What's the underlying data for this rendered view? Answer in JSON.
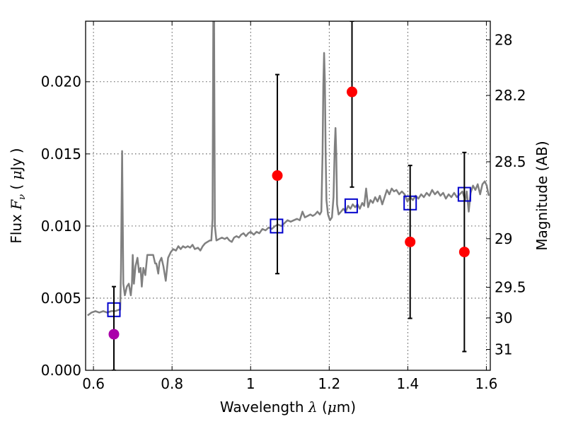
{
  "chart_data": {
    "type": "scatter",
    "title": "",
    "xlabel": {
      "prefix": "Wavelength  ",
      "symbol": "λ",
      "suffix": " (",
      "unit_symbol": "μ",
      "unit_tail": "m)"
    },
    "ylabel": {
      "prefix": "Flux  ",
      "symbol": "F",
      "subscript": "ν",
      "mid": "  ( ",
      "unit_symbol": "μ",
      "unit_tail": "Jy )"
    },
    "y2label": "Magnitude (AB)",
    "xlim": [
      0.58,
      1.61
    ],
    "ylim": [
      0.0,
      0.0242
    ],
    "grid": true,
    "x_ticks": [
      0.6,
      0.8,
      1.0,
      1.2,
      1.4,
      1.6
    ],
    "x_tick_labels": [
      "0.6",
      "0.8",
      "1",
      "1.2",
      "1.4",
      "1.6"
    ],
    "y_ticks": [
      0.0,
      0.005,
      0.01,
      0.015,
      0.02
    ],
    "y_tick_labels": [
      "0.000",
      "0.005",
      "0.010",
      "0.015",
      "0.020"
    ],
    "y2_ticks": [
      {
        "label": "28",
        "mag": 28.0
      },
      {
        "label": "28.2",
        "mag": 28.2
      },
      {
        "label": "28.5",
        "mag": 28.5
      },
      {
        "label": "29",
        "mag": 29.0
      },
      {
        "label": "29.5",
        "mag": 29.5
      },
      {
        "label": "30",
        "mag": 30.0
      },
      {
        "label": "31",
        "mag": 31.0
      }
    ],
    "series": [
      {
        "kind": "spectrum-line",
        "color": "#808080",
        "points": [
          [
            0.585,
            0.0038
          ],
          [
            0.595,
            0.004
          ],
          [
            0.605,
            0.0041
          ],
          [
            0.615,
            0.004
          ],
          [
            0.625,
            0.0041
          ],
          [
            0.635,
            0.004
          ],
          [
            0.645,
            0.0041
          ],
          [
            0.655,
            0.0041
          ],
          [
            0.665,
            0.0042
          ],
          [
            0.668,
            0.0042
          ],
          [
            0.67,
            0.007
          ],
          [
            0.673,
            0.0152
          ],
          [
            0.676,
            0.006
          ],
          [
            0.68,
            0.0052
          ],
          [
            0.685,
            0.0058
          ],
          [
            0.69,
            0.006
          ],
          [
            0.695,
            0.0052
          ],
          [
            0.698,
            0.006
          ],
          [
            0.7,
            0.008
          ],
          [
            0.703,
            0.006
          ],
          [
            0.707,
            0.0072
          ],
          [
            0.712,
            0.0078
          ],
          [
            0.716,
            0.0068
          ],
          [
            0.72,
            0.0071
          ],
          [
            0.723,
            0.0058
          ],
          [
            0.727,
            0.0071
          ],
          [
            0.732,
            0.0066
          ],
          [
            0.737,
            0.008
          ],
          [
            0.745,
            0.008
          ],
          [
            0.752,
            0.008
          ],
          [
            0.757,
            0.0074
          ],
          [
            0.76,
            0.0074
          ],
          [
            0.765,
            0.0067
          ],
          [
            0.768,
            0.0075
          ],
          [
            0.773,
            0.0078
          ],
          [
            0.778,
            0.0072
          ],
          [
            0.784,
            0.0062
          ],
          [
            0.79,
            0.0078
          ],
          [
            0.797,
            0.0082
          ],
          [
            0.803,
            0.0084
          ],
          [
            0.81,
            0.0083
          ],
          [
            0.816,
            0.0086
          ],
          [
            0.822,
            0.0084
          ],
          [
            0.828,
            0.0086
          ],
          [
            0.834,
            0.0085
          ],
          [
            0.84,
            0.0086
          ],
          [
            0.846,
            0.0085
          ],
          [
            0.852,
            0.0087
          ],
          [
            0.858,
            0.0084
          ],
          [
            0.866,
            0.0085
          ],
          [
            0.872,
            0.0083
          ],
          [
            0.878,
            0.0086
          ],
          [
            0.884,
            0.0088
          ],
          [
            0.89,
            0.0089
          ],
          [
            0.896,
            0.009
          ],
          [
            0.9,
            0.009
          ],
          [
            0.903,
            0.0105
          ],
          [
            0.905,
            0.0242
          ],
          [
            0.907,
            0.0242
          ],
          [
            0.909,
            0.01
          ],
          [
            0.913,
            0.009
          ],
          [
            0.92,
            0.0091
          ],
          [
            0.927,
            0.0092
          ],
          [
            0.934,
            0.0091
          ],
          [
            0.94,
            0.0092
          ],
          [
            0.946,
            0.009
          ],
          [
            0.952,
            0.0089
          ],
          [
            0.958,
            0.0092
          ],
          [
            0.964,
            0.0093
          ],
          [
            0.97,
            0.0092
          ],
          [
            0.976,
            0.0094
          ],
          [
            0.982,
            0.0095
          ],
          [
            0.988,
            0.0093
          ],
          [
            0.994,
            0.0095
          ],
          [
            1.0,
            0.0096
          ],
          [
            1.008,
            0.0094
          ],
          [
            1.015,
            0.0096
          ],
          [
            1.022,
            0.0095
          ],
          [
            1.03,
            0.0098
          ],
          [
            1.038,
            0.0097
          ],
          [
            1.046,
            0.0099
          ],
          [
            1.054,
            0.0098
          ],
          [
            1.062,
            0.01
          ],
          [
            1.07,
            0.0101
          ],
          [
            1.078,
            0.01
          ],
          [
            1.086,
            0.0102
          ],
          [
            1.094,
            0.0104
          ],
          [
            1.102,
            0.0103
          ],
          [
            1.11,
            0.0104
          ],
          [
            1.118,
            0.0105
          ],
          [
            1.125,
            0.0104
          ],
          [
            1.132,
            0.011
          ],
          [
            1.138,
            0.0106
          ],
          [
            1.145,
            0.0107
          ],
          [
            1.152,
            0.0108
          ],
          [
            1.158,
            0.0107
          ],
          [
            1.164,
            0.0108
          ],
          [
            1.17,
            0.011
          ],
          [
            1.176,
            0.0108
          ],
          [
            1.18,
            0.011
          ],
          [
            1.183,
            0.015
          ],
          [
            1.185,
            0.0198
          ],
          [
            1.187,
            0.022
          ],
          [
            1.189,
            0.02
          ],
          [
            1.191,
            0.015
          ],
          [
            1.193,
            0.0118
          ],
          [
            1.197,
            0.0108
          ],
          [
            1.202,
            0.0104
          ],
          [
            1.207,
            0.0106
          ],
          [
            1.211,
            0.012
          ],
          [
            1.214,
            0.0155
          ],
          [
            1.216,
            0.0168
          ],
          [
            1.218,
            0.015
          ],
          [
            1.22,
            0.0115
          ],
          [
            1.224,
            0.0108
          ],
          [
            1.23,
            0.011
          ],
          [
            1.236,
            0.0112
          ],
          [
            1.242,
            0.011
          ],
          [
            1.248,
            0.0114
          ],
          [
            1.254,
            0.0112
          ],
          [
            1.26,
            0.0115
          ],
          [
            1.266,
            0.0113
          ],
          [
            1.272,
            0.0115
          ],
          [
            1.278,
            0.0112
          ],
          [
            1.284,
            0.0116
          ],
          [
            1.289,
            0.0114
          ],
          [
            1.294,
            0.0126
          ],
          [
            1.299,
            0.0113
          ],
          [
            1.305,
            0.0118
          ],
          [
            1.311,
            0.0116
          ],
          [
            1.317,
            0.012
          ],
          [
            1.323,
            0.0117
          ],
          [
            1.329,
            0.0121
          ],
          [
            1.335,
            0.0115
          ],
          [
            1.341,
            0.012
          ],
          [
            1.347,
            0.0125
          ],
          [
            1.353,
            0.0122
          ],
          [
            1.359,
            0.0126
          ],
          [
            1.365,
            0.0124
          ],
          [
            1.371,
            0.0125
          ],
          [
            1.378,
            0.0122
          ],
          [
            1.385,
            0.0124
          ],
          [
            1.392,
            0.0122
          ],
          [
            1.399,
            0.0117
          ],
          [
            1.406,
            0.012
          ],
          [
            1.413,
            0.0118
          ],
          [
            1.42,
            0.0121
          ],
          [
            1.427,
            0.0119
          ],
          [
            1.434,
            0.0122
          ],
          [
            1.441,
            0.012
          ],
          [
            1.448,
            0.0123
          ],
          [
            1.455,
            0.0121
          ],
          [
            1.462,
            0.0125
          ],
          [
            1.469,
            0.0122
          ],
          [
            1.476,
            0.0124
          ],
          [
            1.483,
            0.0121
          ],
          [
            1.49,
            0.0123
          ],
          [
            1.497,
            0.0119
          ],
          [
            1.504,
            0.0122
          ],
          [
            1.511,
            0.012
          ],
          [
            1.518,
            0.0123
          ],
          [
            1.525,
            0.012
          ],
          [
            1.532,
            0.0122
          ],
          [
            1.539,
            0.0124
          ],
          [
            1.546,
            0.0118
          ],
          [
            1.55,
            0.0124
          ],
          [
            1.555,
            0.011
          ],
          [
            1.56,
            0.0123
          ],
          [
            1.566,
            0.0128
          ],
          [
            1.572,
            0.0125
          ],
          [
            1.578,
            0.0129
          ],
          [
            1.584,
            0.0122
          ],
          [
            1.59,
            0.0129
          ],
          [
            1.596,
            0.0131
          ],
          [
            1.601,
            0.0128
          ],
          [
            1.606,
            0.0121
          ]
        ]
      },
      {
        "kind": "open-squares",
        "color": "#0000cc",
        "points": [
          [
            0.652,
            0.0042
          ],
          [
            1.066,
            0.01
          ],
          [
            1.256,
            0.0114
          ],
          [
            1.406,
            0.0116
          ],
          [
            1.544,
            0.0122
          ]
        ]
      },
      {
        "kind": "errorbars",
        "color": "#000000",
        "bars": [
          {
            "x": 0.652,
            "low": 0.0,
            "high": 0.0058
          },
          {
            "x": 1.068,
            "low": 0.0067,
            "high": 0.0205
          },
          {
            "x": 1.258,
            "low": 0.0127,
            "high": 0.0242
          },
          {
            "x": 1.406,
            "low": 0.0036,
            "high": 0.0142
          },
          {
            "x": 1.544,
            "low": 0.0013,
            "high": 0.0151
          }
        ]
      },
      {
        "kind": "filled-circles",
        "color": "#ff0000",
        "points": [
          [
            1.068,
            0.0135
          ],
          [
            1.258,
            0.0193
          ],
          [
            1.406,
            0.0089
          ],
          [
            1.544,
            0.0082
          ]
        ]
      },
      {
        "kind": "filled-circles",
        "color": "#aa00aa",
        "points": [
          [
            0.652,
            0.0025
          ]
        ]
      }
    ]
  }
}
